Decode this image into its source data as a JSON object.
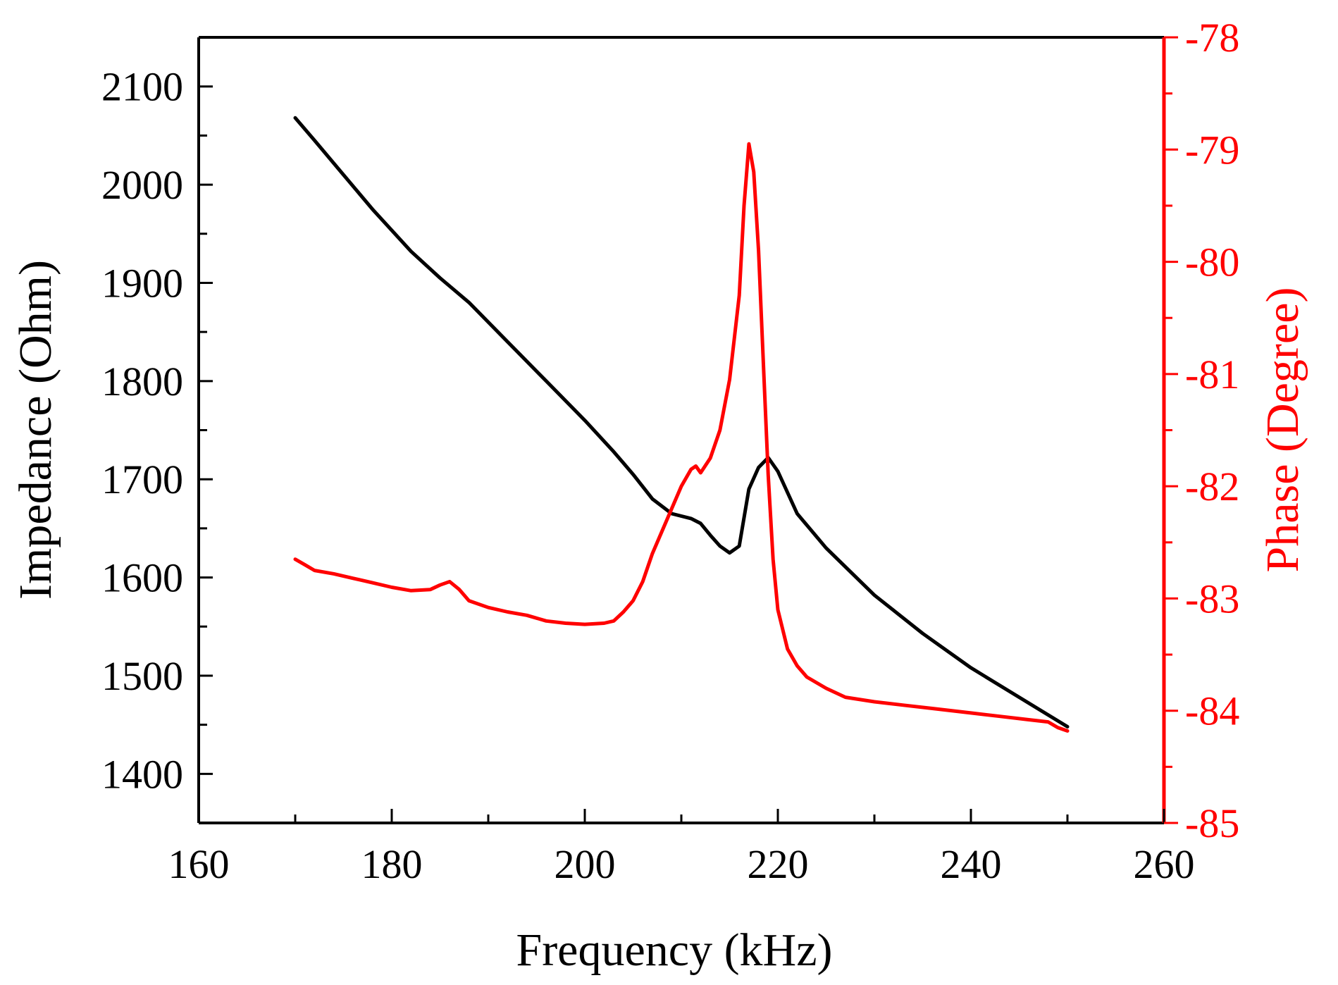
{
  "chart_data": {
    "type": "line",
    "title": "",
    "xlabel": "Frequency (kHz)",
    "ylabel_left": "Impedance (Ohm)",
    "ylabel_right": "Phase (Degree)",
    "xlim": [
      160,
      260
    ],
    "ylim_left": [
      1350,
      2150
    ],
    "ylim_right": [
      -85,
      -78
    ],
    "x_ticks": [
      160,
      180,
      200,
      220,
      240,
      260
    ],
    "y_left_ticks": [
      1400,
      1500,
      1600,
      1700,
      1800,
      1900,
      2000,
      2100
    ],
    "y_right_ticks": [
      -85,
      -84,
      -83,
      -82,
      -81,
      -80,
      -79,
      -78
    ],
    "grid": false,
    "colors": {
      "impedance": "#000000",
      "phase": "#ff0000",
      "axis_right": "#ff0000"
    },
    "series": [
      {
        "name": "Impedance",
        "axis": "left",
        "x": [
          170,
          172,
          175,
          178,
          182,
          185,
          188,
          192,
          196,
          200,
          203,
          205,
          207,
          209,
          211,
          212,
          213,
          214,
          215,
          216,
          217,
          218,
          219,
          220,
          222,
          225,
          230,
          235,
          240,
          245,
          250
        ],
        "values": [
          2068,
          2045,
          2010,
          1975,
          1932,
          1905,
          1880,
          1840,
          1800,
          1760,
          1728,
          1705,
          1680,
          1665,
          1660,
          1655,
          1643,
          1632,
          1625,
          1632,
          1690,
          1712,
          1722,
          1708,
          1665,
          1630,
          1582,
          1543,
          1508,
          1478,
          1448
        ]
      },
      {
        "name": "Phase",
        "axis": "right",
        "x": [
          170,
          171,
          172,
          174,
          176,
          178,
          180,
          182,
          184,
          185,
          186,
          187,
          188,
          190,
          192,
          194,
          196,
          198,
          200,
          202,
          203,
          204,
          205,
          206,
          207,
          208,
          209,
          210,
          211,
          211.5,
          212,
          213,
          214,
          215,
          216,
          216.5,
          217,
          217.5,
          218,
          218.5,
          219,
          219.5,
          220,
          221,
          222,
          223,
          225,
          227,
          230,
          233,
          236,
          240,
          243,
          246,
          248,
          249,
          250
        ],
        "values": [
          -82.65,
          -82.7,
          -82.75,
          -82.78,
          -82.82,
          -82.86,
          -82.9,
          -82.93,
          -82.92,
          -82.88,
          -82.85,
          -82.92,
          -83.02,
          -83.08,
          -83.12,
          -83.15,
          -83.2,
          -83.22,
          -83.23,
          -83.22,
          -83.2,
          -83.12,
          -83.02,
          -82.85,
          -82.6,
          -82.4,
          -82.2,
          -82.0,
          -81.85,
          -81.82,
          -81.88,
          -81.75,
          -81.5,
          -81.05,
          -80.3,
          -79.5,
          -78.95,
          -79.2,
          -79.9,
          -80.9,
          -81.9,
          -82.65,
          -83.1,
          -83.45,
          -83.6,
          -83.7,
          -83.8,
          -83.88,
          -83.92,
          -83.95,
          -83.98,
          -84.02,
          -84.05,
          -84.08,
          -84.1,
          -84.15,
          -84.18
        ]
      }
    ]
  }
}
